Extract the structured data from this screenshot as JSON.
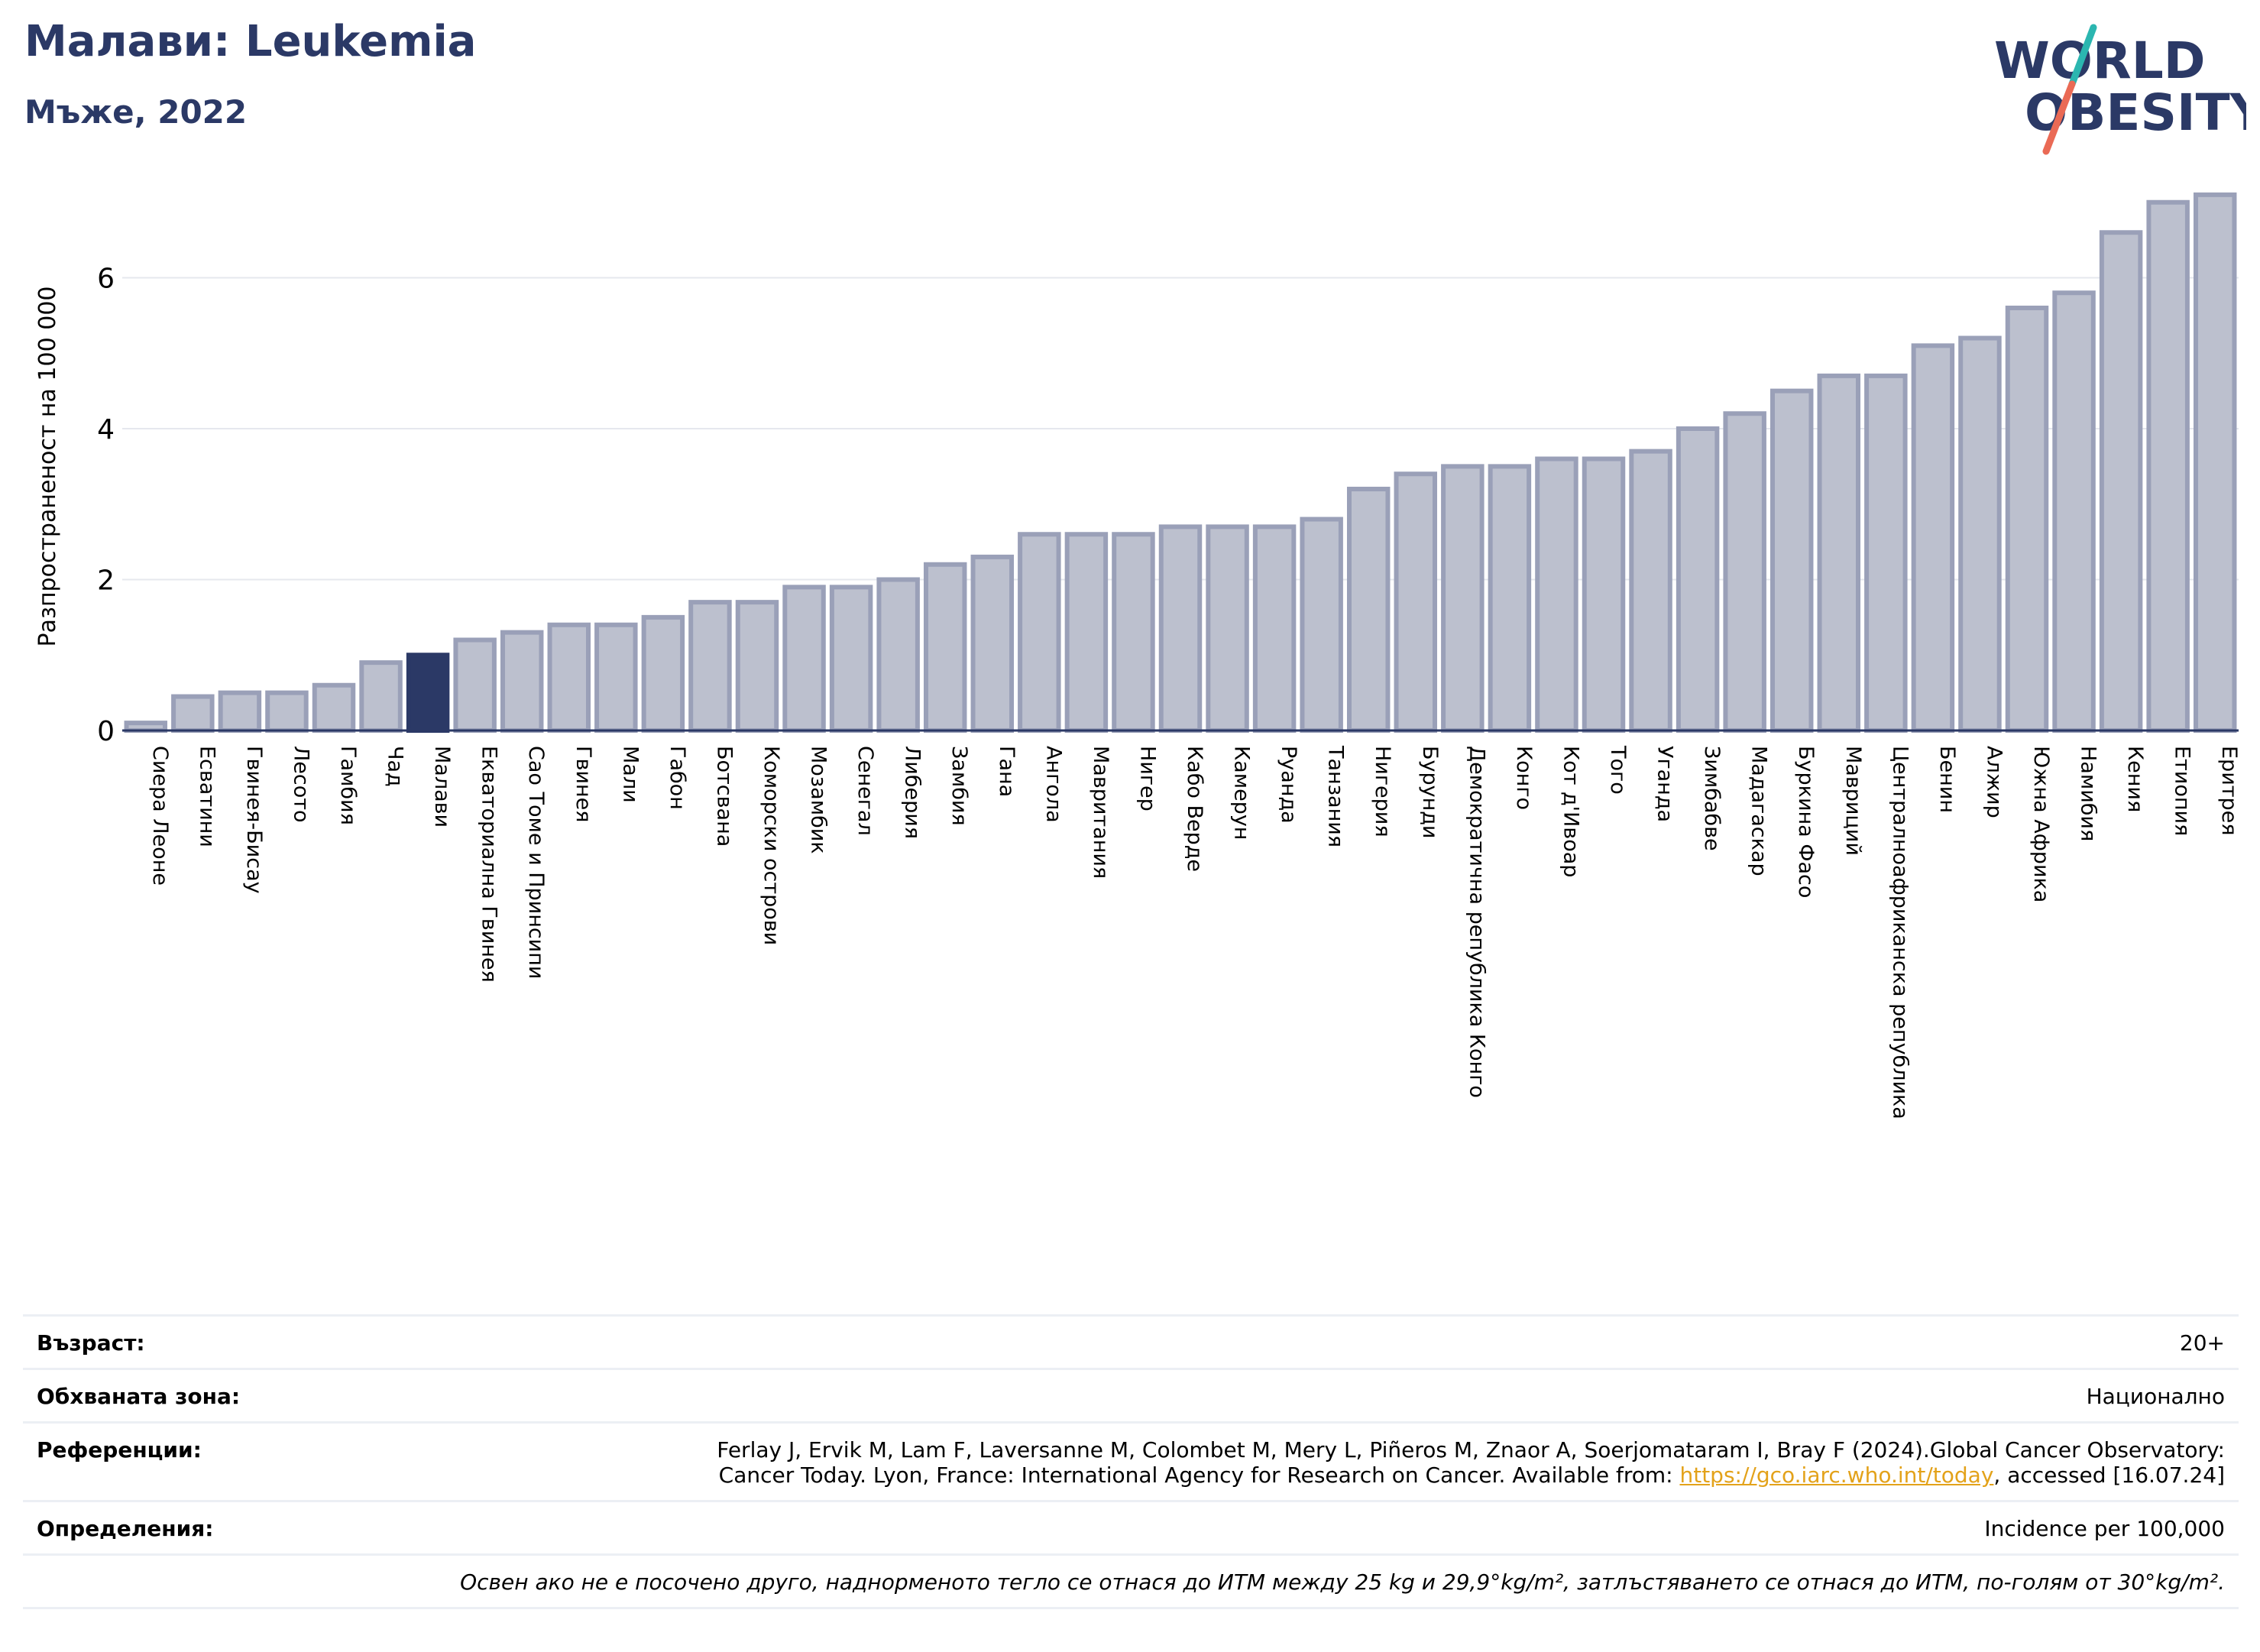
{
  "header": {
    "title": "Малави: Leukemia",
    "subtitle": "Мъже, 2022"
  },
  "logo": {
    "line1": "WORLD",
    "line2": "OBESITY",
    "icon": "world-obesity-logo"
  },
  "chart_data": {
    "type": "bar",
    "ylabel": "Разпространеност  на 100 000",
    "ylim": [
      0,
      7.2
    ],
    "yticks": [
      0,
      2,
      4,
      6
    ],
    "grid": true,
    "highlight": "Малави",
    "colors": {
      "bar": "#bcc0ce",
      "bar_edge": "#9aa0b8",
      "highlight": "#2b3966"
    },
    "categories": [
      "Сиера Леоне",
      "Есватини",
      "Гвинея-Бисау",
      "Лесото",
      "Гамбия",
      "Чад",
      "Малави",
      "Екваториална Гвинея",
      "Сао Томе и Принсипи",
      "Гвинея",
      "Мали",
      "Габон",
      "Ботсвана",
      "Коморски острови",
      "Мозамбик",
      "Сенегал",
      "Либерия",
      "Замбия",
      "Гана",
      "Ангола",
      "Мавритания",
      "Нигер",
      "Кабо Верде",
      "Камерун",
      "Руанда",
      "Танзания",
      "Нигерия",
      "Бурунди",
      "Демократична република Конго",
      "Конго",
      "Кот д'Ивоар",
      "Того",
      "Уганда",
      "Зимбабве",
      "Мадагаскар",
      "Буркина Фасо",
      "Мавриций",
      "Централноафриканска република",
      "Бенин",
      "Алжир",
      "Южна Африка",
      "Намибия",
      "Кения",
      "Етиопия",
      "Еритрея"
    ],
    "values": [
      0.1,
      0.45,
      0.5,
      0.5,
      0.6,
      0.9,
      1.0,
      1.2,
      1.3,
      1.4,
      1.4,
      1.5,
      1.7,
      1.7,
      1.9,
      1.9,
      2.0,
      2.2,
      2.3,
      2.6,
      2.6,
      2.6,
      2.7,
      2.7,
      2.7,
      2.8,
      3.2,
      3.4,
      3.5,
      3.5,
      3.6,
      3.6,
      3.7,
      4.0,
      4.2,
      4.5,
      4.7,
      4.7,
      5.1,
      5.2,
      5.6,
      5.8,
      6.6,
      7.0,
      7.1
    ]
  },
  "info": {
    "age_label": "Възраст:",
    "age_value": "20+",
    "coverage_label": "Обхваната зона:",
    "coverage_value": "Национално",
    "references_label": "Референции:",
    "references_line1": "Ferlay J, Ervik M, Lam F, Laversanne M, Colombet M, Mery L, Piñeros M, Znaor A, Soerjomataram I, Bray F (2024).Global Cancer Observatory:",
    "references_line2_pre": "Cancer Today. Lyon, France: International Agency for Research on Cancer. Available from: ",
    "references_link": "https://gco.iarc.who.int/today",
    "references_line2_post": ", accessed [16.07.24]",
    "definitions_label": "Определения:",
    "definitions_value": "Incidence per 100,000",
    "footnote": "Освен ако не е посочено друго, наднорменото тегло се отнася до ИТМ между 25 kg и 29,9°kg/m², затлъстяването се отнася до ИТМ, по-голям от 30°kg/m²."
  }
}
